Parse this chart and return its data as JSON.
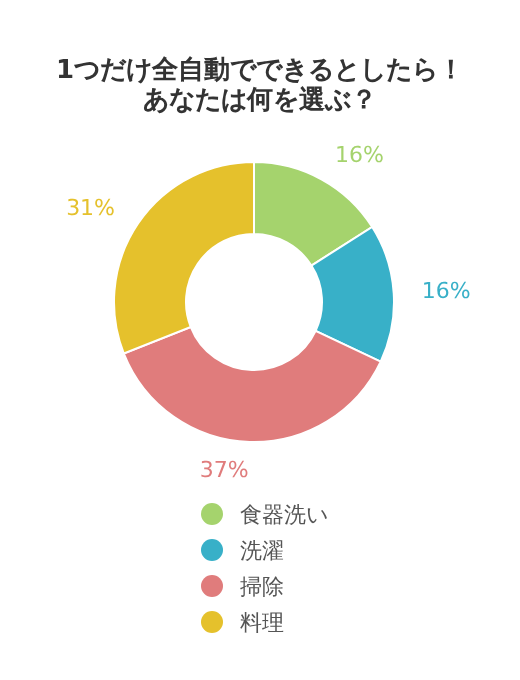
{
  "chart_data": {
    "type": "donut",
    "title": "1つだけ全自動でできるとしたら！あなたは何を選ぶ？",
    "categories": [
      "食器洗い",
      "洗濯",
      "掃除",
      "料理"
    ],
    "values": [
      16,
      16,
      37,
      31
    ],
    "colors": [
      "#a5d36d",
      "#38b0c8",
      "#e07c7c",
      "#e5c12c"
    ],
    "value_labels": [
      "16%",
      "16%",
      "37%",
      "31%"
    ],
    "legend": "bottom"
  }
}
